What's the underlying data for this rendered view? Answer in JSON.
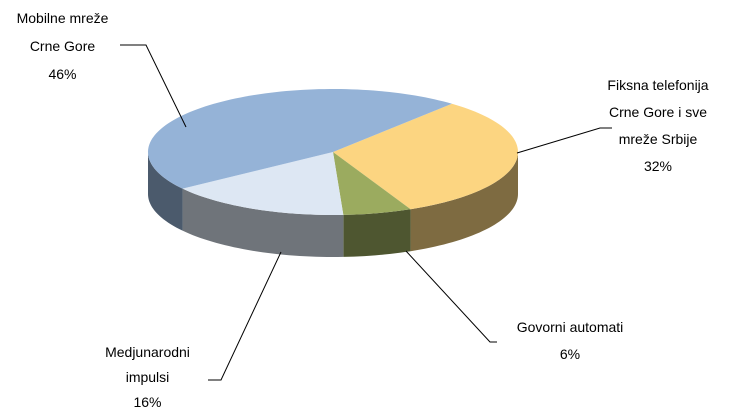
{
  "chart_data": {
    "type": "pie3d",
    "categories": [
      "Fiksna telefonija Crne Gore i sve mreže Srbije",
      "Govorni automati",
      "Medjunarodni impulsi",
      "Mobilne mreže Crne Gore"
    ],
    "values": [
      32,
      6,
      16,
      46
    ],
    "value_labels": [
      "32%",
      "6%",
      "16%",
      "46%"
    ],
    "colors": [
      "#fcd581",
      "#9bab5f",
      "#dde7f3",
      "#95b3d7"
    ]
  }
}
